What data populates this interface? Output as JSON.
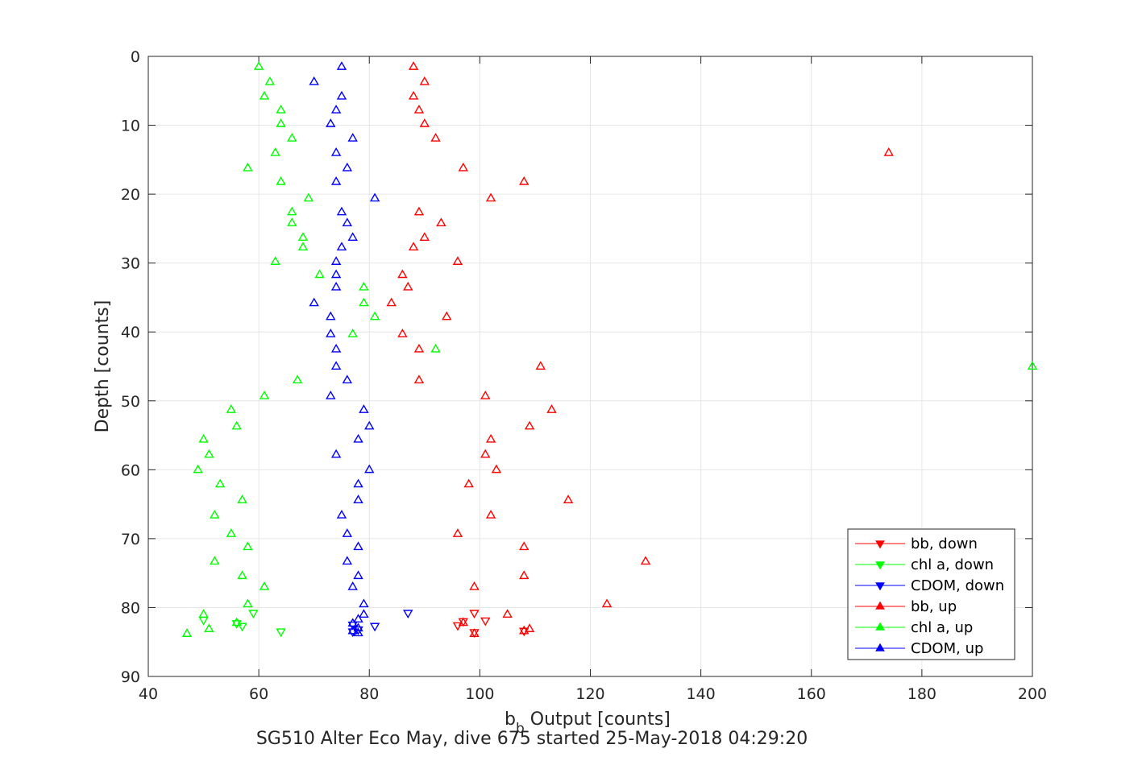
{
  "chart_data": {
    "type": "scatter",
    "xlabel_main": "b",
    "xlabel_sub": "b",
    "xlabel_rest": " Output [counts]",
    "ylabel": "Depth [counts]",
    "caption": "SG510 Alter Eco May, dive 675 started 25-May-2018 04:29:20",
    "xlim": [
      40,
      200
    ],
    "ylim": [
      0,
      90
    ],
    "y_reversed": true,
    "grid": true,
    "legend_placement": "bottom-right",
    "x_ticks": [
      40,
      60,
      80,
      100,
      120,
      140,
      160,
      180,
      200
    ],
    "y_ticks": [
      0,
      10,
      20,
      30,
      40,
      50,
      60,
      70,
      80,
      90
    ],
    "series": [
      {
        "name": "bb, down",
        "color": "#ff0000",
        "marker": "triangle-down",
        "points": [
          [
            99,
            80.8
          ],
          [
            97,
            82.0
          ],
          [
            96,
            82.6
          ],
          [
            101,
            81.9
          ],
          [
            108,
            83.4
          ],
          [
            99,
            83.6
          ]
        ]
      },
      {
        "name": "chl a, down",
        "color": "#00ff00",
        "marker": "triangle-down",
        "points": [
          [
            50,
            81.8
          ],
          [
            56,
            82.3
          ],
          [
            57,
            82.7
          ],
          [
            59,
            80.8
          ],
          [
            64,
            83.5
          ]
        ]
      },
      {
        "name": "CDOM, down",
        "color": "#0000ff",
        "marker": "triangle-down",
        "points": [
          [
            87,
            80.8
          ],
          [
            81,
            82.7
          ],
          [
            77,
            82.5
          ],
          [
            78,
            83.2
          ],
          [
            77,
            83.5
          ]
        ]
      },
      {
        "name": "bb, up",
        "color": "#ff0000",
        "marker": "triangle-up",
        "points": [
          [
            88,
            1.5
          ],
          [
            90,
            3.7
          ],
          [
            88,
            5.8
          ],
          [
            89,
            7.8
          ],
          [
            90,
            9.8
          ],
          [
            92,
            11.9
          ],
          [
            174,
            14.0
          ],
          [
            97,
            16.2
          ],
          [
            108,
            18.2
          ],
          [
            102,
            20.6
          ],
          [
            89,
            22.6
          ],
          [
            93,
            24.2
          ],
          [
            90,
            26.3
          ],
          [
            88,
            27.7
          ],
          [
            96,
            29.8
          ],
          [
            86,
            31.7
          ],
          [
            87,
            33.5
          ],
          [
            84,
            35.8
          ],
          [
            94,
            37.8
          ],
          [
            86,
            40.3
          ],
          [
            89,
            42.5
          ],
          [
            111,
            45.0
          ],
          [
            89,
            47.0
          ],
          [
            101,
            49.3
          ],
          [
            113,
            51.3
          ],
          [
            109,
            53.7
          ],
          [
            102,
            55.6
          ],
          [
            101,
            57.8
          ],
          [
            103,
            60.0
          ],
          [
            98,
            62.1
          ],
          [
            116,
            64.4
          ],
          [
            102,
            66.6
          ],
          [
            96,
            69.3
          ],
          [
            108,
            71.2
          ],
          [
            130,
            73.3
          ],
          [
            108,
            75.4
          ],
          [
            99,
            77.0
          ],
          [
            123,
            79.5
          ],
          [
            105,
            81.0
          ],
          [
            97,
            82.2
          ],
          [
            109,
            83.1
          ],
          [
            108,
            83.4
          ],
          [
            99,
            83.8
          ]
        ]
      },
      {
        "name": "chl a, up",
        "color": "#00ff00",
        "marker": "triangle-up",
        "points": [
          [
            60,
            1.5
          ],
          [
            62,
            3.7
          ],
          [
            61,
            5.8
          ],
          [
            64,
            7.8
          ],
          [
            64,
            9.8
          ],
          [
            66,
            11.9
          ],
          [
            63,
            14.0
          ],
          [
            58,
            16.2
          ],
          [
            64,
            18.2
          ],
          [
            69,
            20.6
          ],
          [
            66,
            22.6
          ],
          [
            66,
            24.2
          ],
          [
            68,
            26.3
          ],
          [
            68,
            27.7
          ],
          [
            63,
            29.8
          ],
          [
            71,
            31.7
          ],
          [
            79,
            33.5
          ],
          [
            79,
            35.8
          ],
          [
            81,
            37.8
          ],
          [
            77,
            40.3
          ],
          [
            92,
            42.5
          ],
          [
            200,
            45.0
          ],
          [
            67,
            47.0
          ],
          [
            61,
            49.3
          ],
          [
            55,
            51.3
          ],
          [
            56,
            53.7
          ],
          [
            50,
            55.6
          ],
          [
            51,
            57.8
          ],
          [
            49,
            60.0
          ],
          [
            53,
            62.1
          ],
          [
            57,
            64.4
          ],
          [
            52,
            66.6
          ],
          [
            55,
            69.3
          ],
          [
            58,
            71.2
          ],
          [
            52,
            73.3
          ],
          [
            57,
            75.4
          ],
          [
            61,
            77.0
          ],
          [
            58,
            79.5
          ],
          [
            50,
            81.0
          ],
          [
            56,
            82.2
          ],
          [
            51,
            83.1
          ],
          [
            47,
            83.8
          ]
        ]
      },
      {
        "name": "CDOM, up",
        "color": "#0000ff",
        "marker": "triangle-up",
        "points": [
          [
            75,
            1.5
          ],
          [
            70,
            3.7
          ],
          [
            75,
            5.8
          ],
          [
            74,
            7.8
          ],
          [
            73,
            9.8
          ],
          [
            77,
            11.9
          ],
          [
            74,
            14.0
          ],
          [
            76,
            16.2
          ],
          [
            74,
            18.2
          ],
          [
            81,
            20.6
          ],
          [
            75,
            22.6
          ],
          [
            76,
            24.2
          ],
          [
            77,
            26.3
          ],
          [
            75,
            27.7
          ],
          [
            74,
            29.8
          ],
          [
            74,
            31.7
          ],
          [
            74,
            33.5
          ],
          [
            70,
            35.8
          ],
          [
            73,
            37.8
          ],
          [
            73,
            40.3
          ],
          [
            74,
            42.5
          ],
          [
            74,
            45.0
          ],
          [
            76,
            47.0
          ],
          [
            73,
            49.3
          ],
          [
            79,
            51.3
          ],
          [
            80,
            53.7
          ],
          [
            78,
            55.6
          ],
          [
            74,
            57.8
          ],
          [
            80,
            60.0
          ],
          [
            78,
            62.1
          ],
          [
            78,
            64.4
          ],
          [
            75,
            66.6
          ],
          [
            76,
            69.3
          ],
          [
            78,
            71.2
          ],
          [
            76,
            73.3
          ],
          [
            78,
            75.4
          ],
          [
            77,
            77.0
          ],
          [
            79,
            79.5
          ],
          [
            79,
            81.0
          ],
          [
            78,
            81.7
          ],
          [
            77,
            82.3
          ],
          [
            78,
            83.0
          ],
          [
            77,
            83.4
          ],
          [
            78,
            83.7
          ]
        ]
      }
    ]
  }
}
